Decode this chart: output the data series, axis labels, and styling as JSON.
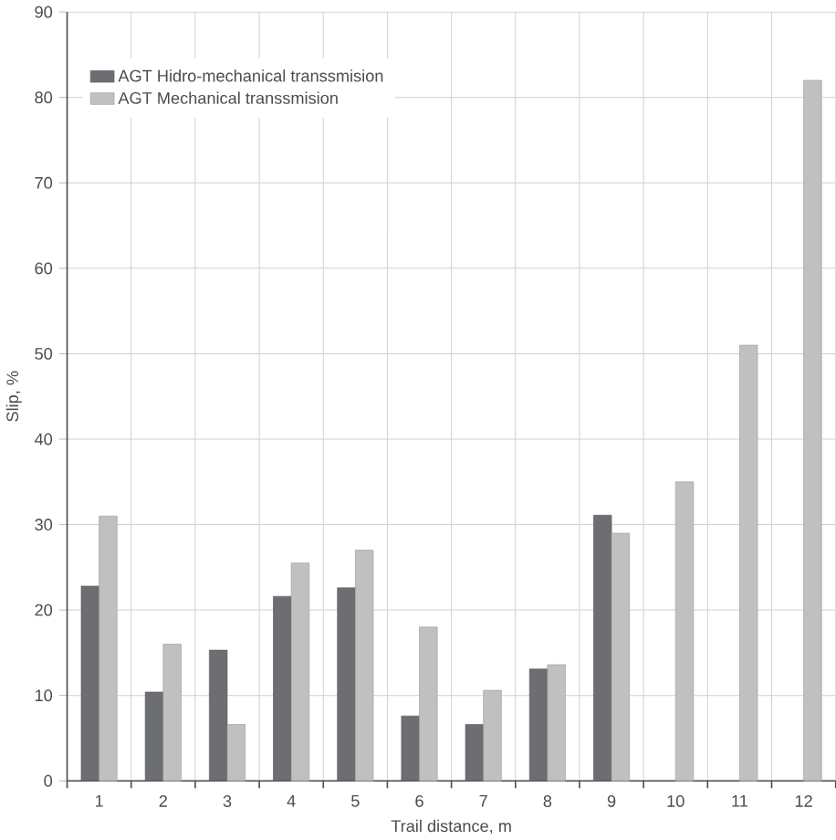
{
  "chart_data": {
    "type": "bar",
    "xlabel": "Trail distance, m",
    "ylabel": "Slip, %",
    "categories": [
      "1",
      "2",
      "3",
      "4",
      "5",
      "6",
      "7",
      "8",
      "9",
      "10",
      "11",
      "12"
    ],
    "series": [
      {
        "name": "AGT Hidro-mechanical transsmision",
        "color": "#6d6e71",
        "values": [
          22.8,
          10.4,
          15.3,
          21.6,
          22.6,
          7.6,
          6.6,
          13.1,
          31.1,
          null,
          null,
          null
        ]
      },
      {
        "name": "AGT Mechanical transsmision",
        "color": "#c0c0c0",
        "values": [
          31.0,
          16.0,
          6.6,
          25.5,
          27.0,
          18.0,
          10.6,
          13.6,
          29.0,
          35.0,
          51.0,
          82.0
        ]
      }
    ],
    "ylim": [
      0,
      90
    ],
    "yticks": [
      0,
      10,
      20,
      30,
      40,
      50,
      60,
      70,
      80,
      90
    ],
    "grid": true,
    "legend": "top left"
  }
}
